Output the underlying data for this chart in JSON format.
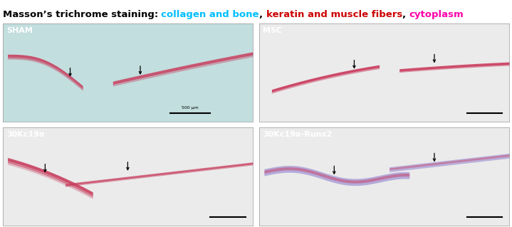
{
  "title_parts": [
    {
      "text": "Masson’s trichrome staining: ",
      "color": "black",
      "bold": true
    },
    {
      "text": "collagen and bone",
      "color": "#00bfff",
      "bold": true
    },
    {
      "text": ", ",
      "color": "black",
      "bold": true
    },
    {
      "text": "keratin and muscle fibers",
      "color": "#cc0000",
      "bold": true
    },
    {
      "text": ", ",
      "color": "black",
      "bold": true
    },
    {
      "text": "cytoplasm",
      "color": "#ff00aa",
      "bold": true
    }
  ],
  "panels": [
    {
      "label": "SHAM",
      "row": 0,
      "col": 0,
      "bg": "#c2dede"
    },
    {
      "label": "MSC",
      "row": 0,
      "col": 1,
      "bg": "#ebebeb"
    },
    {
      "label": "30Kc19α",
      "row": 1,
      "col": 0,
      "bg": "#ebebeb"
    },
    {
      "label": "30Kc19α-Runx2",
      "row": 1,
      "col": 1,
      "bg": "#ebebeb"
    }
  ],
  "scalebar_text": "500 μm",
  "title_fontsize": 9.5,
  "label_fontsize": 8.0
}
